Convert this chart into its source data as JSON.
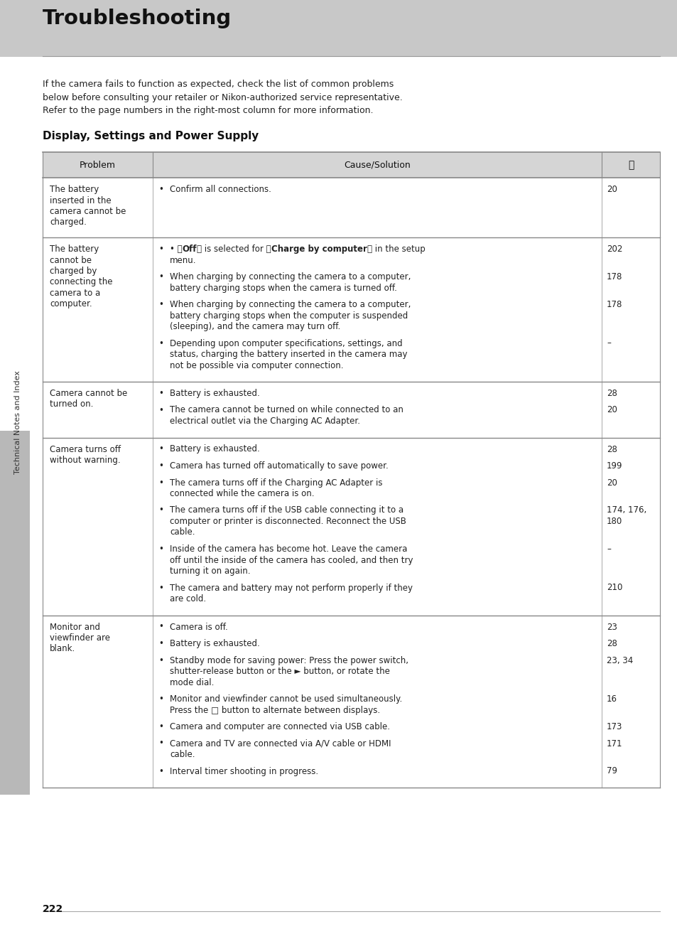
{
  "title": "Troubleshooting",
  "intro_text": "If the camera fails to function as expected, check the list of common problems\nbelow before consulting your retailer or Nikon-authorized service representative.\nRefer to the page numbers in the right-most column for more information.",
  "section_title": "Display, Settings and Power Supply",
  "page_bg": "#ffffff",
  "side_label": "Technical Notes and Index",
  "page_number": "222",
  "col_headers": [
    "Problem",
    "Cause/Solution",
    "□"
  ],
  "rows": [
    {
      "problem": "The battery\ninserted in the\ncamera cannot be\ncharged.",
      "causes": [
        {
          "text": "Confirm all connections.",
          "bold_parts": [],
          "page": "20"
        }
      ]
    },
    {
      "problem": "The battery\ncannot be\ncharged by\nconnecting the\ncamera to a\ncomputer.",
      "causes": [
        {
          "text": "• \u0007Off\u0007 is selected for \u0007Charge by computer\u0007 in the setup\nmenu.",
          "plain": "Off is selected for Charge by computer in the setup\nmenu.",
          "bold_words": [
            "Off",
            "Charge by computer"
          ],
          "page": "202"
        },
        {
          "text": "When charging by connecting the camera to a computer,\nbattery charging stops when the camera is turned off.",
          "bold_words": [],
          "page": "178"
        },
        {
          "text": "When charging by connecting the camera to a computer,\nbattery charging stops when the computer is suspended\n(sleeping), and the camera may turn off.",
          "bold_words": [],
          "page": "178"
        },
        {
          "text": "Depending upon computer specifications, settings, and\nstatus, charging the battery inserted in the camera may\nnot be possible via computer connection.",
          "bold_words": [],
          "page": "–"
        }
      ]
    },
    {
      "problem": "Camera cannot be\nturned on.",
      "causes": [
        {
          "text": "Battery is exhausted.",
          "bold_words": [],
          "page": "28"
        },
        {
          "text": "The camera cannot be turned on while connected to an\nelectrical outlet via the Charging AC Adapter.",
          "bold_words": [],
          "page": "20"
        }
      ]
    },
    {
      "problem": "Camera turns off\nwithout warning.",
      "causes": [
        {
          "text": "Battery is exhausted.",
          "bold_words": [],
          "page": "28"
        },
        {
          "text": "Camera has turned off automatically to save power.",
          "bold_words": [],
          "page": "199"
        },
        {
          "text": "The camera turns off if the Charging AC Adapter is\nconnected while the camera is on.",
          "bold_words": [],
          "page": "20"
        },
        {
          "text": "The camera turns off if the USB cable connecting it to a\ncomputer or printer is disconnected. Reconnect the USB\ncable.",
          "bold_words": [],
          "page": "174, 176,\n180"
        },
        {
          "text": "Inside of the camera has become hot. Leave the camera\noff until the inside of the camera has cooled, and then try\nturning it on again.",
          "bold_words": [],
          "page": "–"
        },
        {
          "text": "The camera and battery may not perform properly if they\nare cold.",
          "bold_words": [],
          "page": "210"
        }
      ]
    },
    {
      "problem": "Monitor and\nviewfinder are\nblank.",
      "causes": [
        {
          "text": "Camera is off.",
          "bold_words": [],
          "page": "23"
        },
        {
          "text": "Battery is exhausted.",
          "bold_words": [],
          "page": "28"
        },
        {
          "text": "Standby mode for saving power: Press the power switch,\nshutter-release button or the ► button, or rotate the\nmode dial.",
          "bold_words": [],
          "page": "23, 34"
        },
        {
          "text": "Monitor and viewfinder cannot be used simultaneously.\nPress the □ button to alternate between displays.",
          "bold_words": [],
          "page": "16"
        },
        {
          "text": "Camera and computer are connected via USB cable.",
          "bold_words": [],
          "page": "173"
        },
        {
          "text": "Camera and TV are connected via A/V cable or HDMI\ncable.",
          "bold_words": [],
          "page": "171"
        },
        {
          "text": "Interval timer shooting in progress.",
          "bold_words": [],
          "page": "79"
        }
      ]
    }
  ]
}
